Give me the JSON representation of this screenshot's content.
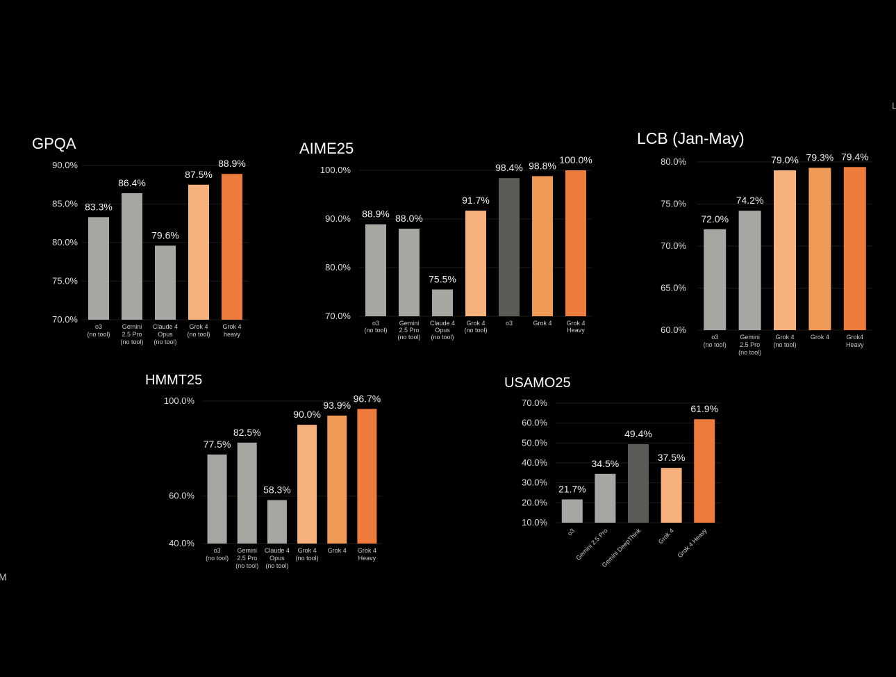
{
  "colors": {
    "gray": "#a6a6a3",
    "dark_gray": "#5b5b57",
    "light_orange": "#f6b17d",
    "mid_orange": "#f09a58",
    "orange": "#ec7b3c",
    "background": "#000000",
    "grid": "#1c1c1c"
  },
  "chart_data": [
    {
      "id": "gpqa",
      "type": "bar",
      "title": "GPQA",
      "ylim": [
        70,
        90
      ],
      "yticks": [
        "70.0%",
        "75.0%",
        "80.0%",
        "85.0%",
        "90.0%"
      ],
      "ytick_values": [
        70,
        75,
        80,
        85,
        90
      ],
      "categories": [
        [
          "o3",
          "(no tool)"
        ],
        [
          "Gemini",
          "2.5 Pro",
          "(no tool)"
        ],
        [
          "Claude 4",
          "Opus",
          "(no tool)"
        ],
        [
          "Grok 4",
          "(no tool)"
        ],
        [
          "Grok 4",
          "heavy"
        ]
      ],
      "values": [
        83.3,
        86.4,
        79.6,
        87.5,
        88.9
      ],
      "labels": [
        "83.3%",
        "86.4%",
        "79.6%",
        "87.5%",
        "88.9%"
      ],
      "bar_colors": [
        "gray",
        "gray",
        "gray",
        "light_orange",
        "orange"
      ]
    },
    {
      "id": "aime25",
      "type": "bar",
      "title": "AIME25",
      "ylim": [
        70,
        100
      ],
      "yticks": [
        "70.0%",
        "80.0%",
        "90.0%",
        "100.0%"
      ],
      "ytick_values": [
        70,
        80,
        90,
        100
      ],
      "categories": [
        [
          "o3",
          "(no tool)"
        ],
        [
          "Gemini",
          "2.5 Pro",
          "(no tool)"
        ],
        [
          "Claude 4",
          "Opus",
          "(no tool)"
        ],
        [
          "Grok 4",
          "(no tool)"
        ],
        [
          "o3"
        ],
        [
          "Grok 4"
        ],
        [
          "Grok 4",
          "Heavy"
        ]
      ],
      "values": [
        88.9,
        88.0,
        75.5,
        91.7,
        98.4,
        98.8,
        100.0
      ],
      "labels": [
        "88.9%",
        "88.0%",
        "75.5%",
        "91.7%",
        "98.4%",
        "98.8%",
        "100.0%"
      ],
      "bar_colors": [
        "gray",
        "gray",
        "gray",
        "light_orange",
        "dark_gray",
        "mid_orange",
        "orange"
      ]
    },
    {
      "id": "lcb",
      "type": "bar",
      "title": "LCB (Jan-May)",
      "ylim": [
        60,
        80
      ],
      "yticks": [
        "60.0%",
        "65.0%",
        "70.0%",
        "75.0%",
        "80.0%"
      ],
      "ytick_values": [
        60,
        65,
        70,
        75,
        80
      ],
      "categories": [
        [
          "o3",
          "(no tool)"
        ],
        [
          "Gemini",
          "2.5 Pro",
          "(no tool)"
        ],
        [
          "Grok 4",
          "(no tool)"
        ],
        [
          "Grok 4"
        ],
        [
          "Grok4",
          "Heavy"
        ]
      ],
      "values": [
        72.0,
        74.2,
        79.0,
        79.3,
        79.4
      ],
      "labels": [
        "72.0%",
        "74.2%",
        "79.0%",
        "79.3%",
        "79.4%"
      ],
      "bar_colors": [
        "gray",
        "gray",
        "light_orange",
        "mid_orange",
        "orange"
      ]
    },
    {
      "id": "hmmt25",
      "type": "bar",
      "title": "HMMT25",
      "ylim": [
        40,
        100
      ],
      "yticks": [
        "40.0%",
        "60.0%",
        "100.0%"
      ],
      "ytick_values": [
        40,
        60,
        100
      ],
      "categories": [
        [
          "o3",
          "(no tool)"
        ],
        [
          "Gemini",
          "2.5 Pro",
          "(no tool)"
        ],
        [
          "Claude 4",
          "Opus",
          "(no tool)"
        ],
        [
          "Grok 4",
          "(no tool)"
        ],
        [
          "Grok 4"
        ],
        [
          "Grok 4",
          "Heavy"
        ]
      ],
      "values": [
        77.5,
        82.5,
        58.3,
        90.0,
        93.9,
        96.7
      ],
      "labels": [
        "77.5%",
        "82.5%",
        "58.3%",
        "90.0%",
        "93.9%",
        "96.7%"
      ],
      "bar_colors": [
        "gray",
        "gray",
        "gray",
        "light_orange",
        "mid_orange",
        "orange"
      ]
    },
    {
      "id": "usamo25",
      "type": "bar",
      "title": "USAMO25",
      "ylim": [
        10,
        70
      ],
      "yticks": [
        "10.0%",
        "20.0%",
        "30.0%",
        "40.0%",
        "50.0%",
        "60.0%",
        "70.0%"
      ],
      "ytick_values": [
        10,
        20,
        30,
        40,
        50,
        60,
        70
      ],
      "categories": [
        [
          "o3"
        ],
        [
          "Gemini 2.5 Pro"
        ],
        [
          "Gemini DeepThink"
        ],
        [
          "Grok 4"
        ],
        [
          "Grok 4 Heavy"
        ]
      ],
      "values": [
        21.7,
        34.5,
        49.4,
        37.5,
        61.9
      ],
      "labels": [
        "21.7%",
        "34.5%",
        "49.4%",
        "37.5%",
        "61.9%"
      ],
      "bar_colors": [
        "gray",
        "gray",
        "dark_gray",
        "light_orange",
        "orange"
      ]
    }
  ],
  "edge_marks": {
    "right": "L",
    "left": "M"
  }
}
